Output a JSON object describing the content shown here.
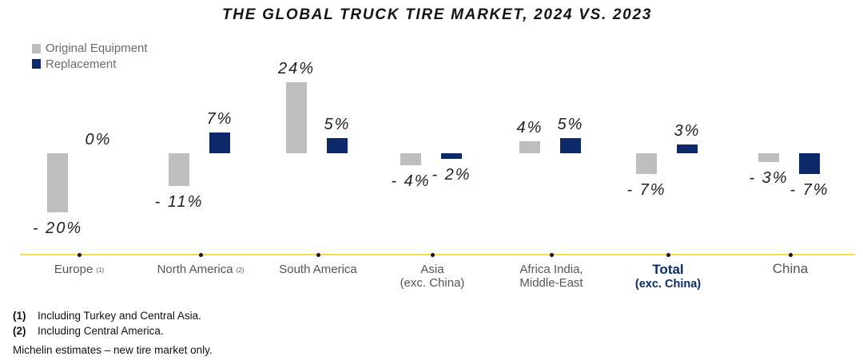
{
  "chart_data": {
    "type": "bar",
    "title": "THE GLOBAL TRUCK TIRE MARKET, 2024 VS. 2023",
    "categories": [
      "Europe",
      "North America",
      "South America",
      "Asia\n(exc. China)",
      "Africa India,\nMiddle-East",
      "Total\n(exc. China)",
      "China"
    ],
    "category_notes": [
      "(1)",
      "(2)",
      "",
      "",
      "",
      "",
      ""
    ],
    "series": [
      {
        "name": "Original Equipment",
        "color": "#bebebe",
        "values": [
          -20,
          -11,
          24,
          -4,
          4,
          -7,
          -3
        ],
        "labels": [
          "- 20%",
          "- 11%",
          "24%",
          "- 4%",
          "4%",
          "- 7%",
          "- 3%"
        ]
      },
      {
        "name": "Replacement",
        "color": "#0c2a6a",
        "values": [
          0,
          7,
          5,
          -2,
          5,
          3,
          -7
        ],
        "labels": [
          "0%",
          "7%",
          "5%",
          "- 2%",
          "5%",
          "3%",
          "- 7%"
        ]
      }
    ],
    "emphasized_category_index": 5,
    "emphasis_color": "#0c2a6a",
    "baseline_color": "#f2df47",
    "legend_position": "top-left",
    "grid": false
  },
  "footnotes": [
    {
      "marker": "(1)",
      "text": "Including Turkey and Central Asia."
    },
    {
      "marker": "(2)",
      "text": "Including Central America."
    }
  ],
  "source_note": "Michelin estimates – new tire market only."
}
